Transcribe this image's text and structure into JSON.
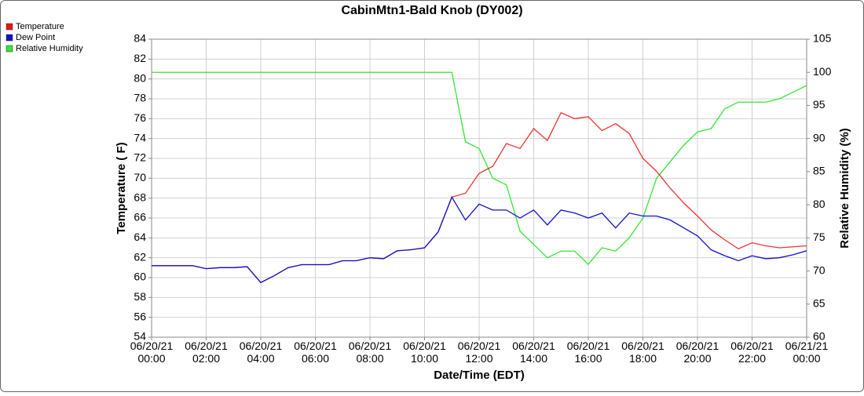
{
  "chart_data": {
    "type": "line",
    "title": "CabinMtn1-Bald Knob (DY002)",
    "x_label": "Date/Time (EDT)",
    "y_label": "Temperature ( F)",
    "y2_label": "Relative Humidity (%)",
    "grid": true,
    "legend": "top-left",
    "x": [
      "06/20/21 00:00",
      "06/20/21 00:30",
      "06/20/21 01:00",
      "06/20/21 01:30",
      "06/20/21 02:00",
      "06/20/21 02:30",
      "06/20/21 03:00",
      "06/20/21 03:30",
      "06/20/21 04:00",
      "06/20/21 04:30",
      "06/20/21 05:00",
      "06/20/21 05:30",
      "06/20/21 06:00",
      "06/20/21 06:30",
      "06/20/21 07:00",
      "06/20/21 07:30",
      "06/20/21 08:00",
      "06/20/21 08:30",
      "06/20/21 09:00",
      "06/20/21 09:30",
      "06/20/21 10:00",
      "06/20/21 10:30",
      "06/20/21 11:00",
      "06/20/21 11:30",
      "06/20/21 12:00",
      "06/20/21 12:30",
      "06/20/21 13:00",
      "06/20/21 13:30",
      "06/20/21 14:00",
      "06/20/21 14:30",
      "06/20/21 15:00",
      "06/20/21 15:30",
      "06/20/21 16:00",
      "06/20/21 16:30",
      "06/20/21 17:00",
      "06/20/21 17:30",
      "06/20/21 18:00",
      "06/20/21 18:30",
      "06/20/21 19:00",
      "06/20/21 19:30",
      "06/20/21 20:00",
      "06/20/21 20:30",
      "06/20/21 21:00",
      "06/20/21 21:30",
      "06/20/21 22:00",
      "06/20/21 22:30",
      "06/20/21 23:00",
      "06/20/21 23:30",
      "06/21/21 00:00"
    ],
    "series": [
      {
        "name": "Temperature",
        "color": "#ee1111",
        "values": [
          61.2,
          61.2,
          61.2,
          61.2,
          60.9,
          61.0,
          61.0,
          61.1,
          59.5,
          60.2,
          61.0,
          61.3,
          61.3,
          61.3,
          61.7,
          61.7,
          62.0,
          61.9,
          62.7,
          62.8,
          63.0,
          64.6,
          68.1,
          68.5,
          70.5,
          71.2,
          73.5,
          73.0,
          75.0,
          73.8,
          76.6,
          76.0,
          76.2,
          74.8,
          75.5,
          74.5,
          72.0,
          70.7,
          69.0,
          67.5,
          66.2,
          64.8,
          63.8,
          62.9,
          63.5,
          63.2,
          63.0,
          63.1,
          63.2
        ]
      },
      {
        "name": "Dew Point",
        "color": "#1111cc",
        "values": [
          61.2,
          61.2,
          61.2,
          61.2,
          60.9,
          61.0,
          61.0,
          61.1,
          59.5,
          60.2,
          61.0,
          61.3,
          61.3,
          61.3,
          61.7,
          61.7,
          62.0,
          61.9,
          62.7,
          62.8,
          63.0,
          64.6,
          68.1,
          65.8,
          67.4,
          66.8,
          66.8,
          66.0,
          66.8,
          65.3,
          66.8,
          66.5,
          66.0,
          66.5,
          65.0,
          66.5,
          66.2,
          66.2,
          65.8,
          65.0,
          64.2,
          62.8,
          62.2,
          61.7,
          62.2,
          61.9,
          62.0,
          62.3,
          62.7
        ]
      },
      {
        "name": "Relative Humidity",
        "color": "#33e633",
        "axis": "y2",
        "values": [
          100,
          100,
          100,
          100,
          100,
          100,
          100,
          100,
          100,
          100,
          100,
          100,
          100,
          100,
          100,
          100,
          100,
          100,
          100,
          100,
          100,
          100,
          100,
          89.5,
          88.5,
          84,
          83,
          76,
          74,
          72,
          73,
          73,
          71,
          73.5,
          73,
          75,
          78,
          84,
          86.5,
          89,
          91,
          91.5,
          94.5,
          95.5,
          95.5,
          95.5,
          96,
          97,
          98
        ]
      }
    ],
    "xlim": [
      "06/20/21 00:00",
      "06/21/21 00:00"
    ],
    "xticks": [
      "06/20/21 00:00",
      "06/20/21 02:00",
      "06/20/21 04:00",
      "06/20/21 06:00",
      "06/20/21 08:00",
      "06/20/21 10:00",
      "06/20/21 12:00",
      "06/20/21 14:00",
      "06/20/21 16:00",
      "06/20/21 18:00",
      "06/20/21 20:00",
      "06/20/21 22:00",
      "06/21/21 00:00"
    ],
    "ylim": [
      54,
      84
    ],
    "yticks": [
      54,
      56,
      58,
      60,
      62,
      64,
      66,
      68,
      70,
      72,
      74,
      76,
      78,
      80,
      82,
      84
    ],
    "y2lim": [
      60,
      105
    ],
    "y2ticks": [
      60,
      65,
      70,
      75,
      80,
      85,
      90,
      95,
      100,
      105
    ]
  }
}
